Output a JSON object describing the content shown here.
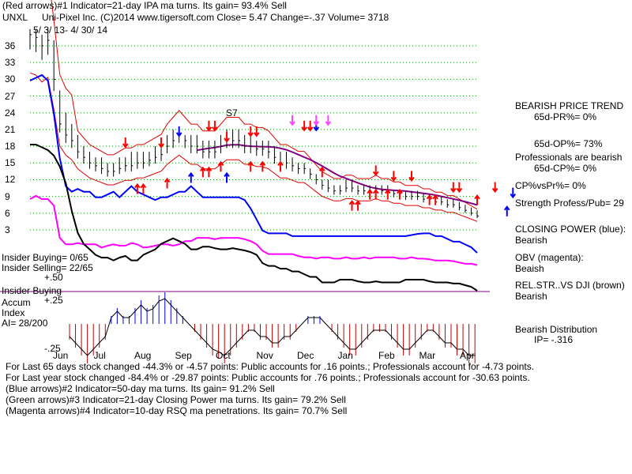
{
  "header": {
    "line1": "(Red arrows)#1 Indicator=21-day IPA ma turns.  Its gain= 93.4% Sell",
    "ticker": "UNXL",
    "line2": "Uni-Pixel Inc.  (C)2014 www.tigersoft.com     Close=  5.47  Change=-.37 Volume=  3718",
    "daterange": "5/ 3/ 13-  4/ 30/ 14"
  },
  "left_labels": {
    "insider_buying_count": "Insider Buying= 0/65",
    "insider_selling_count": "Insider Selling= 22/65",
    "plus50": "+.50",
    "insider_buying": "Insider Buying",
    "accum": "Accum",
    "plus25": "+.25",
    "index": "Index",
    "ai": "AI= 28/200",
    "minus25": "-.25"
  },
  "right_panel": {
    "trend_title": "BEARISH PRICE TREND",
    "pr": "65d-PR%= 0%",
    "op": "65d-OP%= 73%",
    "pros": "Professionals are bearish",
    "cp": "65d-CP%= 0%",
    "cpvspr": "CP%vsPr%=  0%",
    "strength": "Strength Profess/Pub= 29",
    "closing_power": "CLOSING POWER (blue):",
    "cp_val": "Bearish",
    "obv": "OBV (magenta):",
    "obv_val": "Beaish",
    "relstr": "REL.STR..VS DJI (brown)",
    "relstr_val": "Bearish",
    "distribution": "Bearish Distribution",
    "ip": "IP= -.316"
  },
  "footer": {
    "line1": "For Last 65 days stock changed -44.3% or -4.57 points:  Public accounts for  .16 points.;  Professionals account for -4.73 points.",
    "line2": "For Last year stock changed -84.4% or -29.87 points:  Public accounts for  .76 points.;  Professionals account for -30.63 points.",
    "line3": "(Blue arrows)#2 Indicator=50-day ma turns.  Its gain= 91.2% Sell",
    "line4": "(Green arrows)#3 Indicator=21-day Closing Power ma turns.  Its gain= 79.2% Sell",
    "line5": "(Magenta arrows)#4 Indicator=10-day RSQ ma penetrations.  Its gain= 70.7% Sell"
  },
  "annotations": {
    "s7": "S7"
  },
  "colors": {
    "grid": "#00a000",
    "price": "#000000",
    "band": "#e00000",
    "ma": "#800080",
    "closing_power": "#0000ff",
    "obv": "#ff00ff",
    "relstr": "#000000",
    "accum_pos": "#0000ff",
    "accum_neg": "#c00000",
    "baseline": "#800080"
  },
  "chart_data": {
    "type": "line",
    "ytick_labels": [
      "36",
      "33",
      "30",
      "27",
      "24",
      "21",
      "18",
      "15",
      "12",
      "9",
      "6",
      "3"
    ],
    "yticks": [
      36,
      33,
      30,
      27,
      24,
      21,
      18,
      15,
      12,
      9,
      6,
      3
    ],
    "month_labels": [
      "Jun",
      "Jul",
      "Aug",
      "Sep",
      "Oct",
      "Nov",
      "Dec",
      "Jan",
      "Feb",
      "Mar",
      "Apr"
    ],
    "price_close": [
      38,
      37.5,
      36,
      37,
      30,
      22,
      20,
      19,
      17,
      16,
      15,
      14.5,
      14,
      13.5,
      13.5,
      14,
      14.5,
      14.5,
      15,
      15,
      15.5,
      16,
      16.5,
      18,
      19,
      20,
      19,
      18,
      18,
      17,
      17,
      17,
      18,
      19,
      19,
      19,
      18,
      18,
      17.5,
      17.5,
      17,
      16,
      15,
      15,
      14.5,
      14,
      14,
      13,
      12,
      11,
      10.5,
      10,
      10,
      10.5,
      10.5,
      10,
      10,
      10,
      10.5,
      10,
      10,
      9.5,
      9.5,
      9,
      9,
      9,
      8.5,
      8.5,
      8,
      8,
      7.5,
      7.5,
      7,
      6.5,
      6,
      5.5
    ],
    "price_highs": [
      39,
      39,
      38,
      39,
      37,
      28,
      24,
      22,
      20,
      18,
      17,
      16,
      16,
      15,
      15,
      16,
      16,
      17,
      17,
      17,
      17,
      18,
      19,
      20,
      21,
      21,
      20,
      20,
      20,
      19,
      19,
      19,
      20,
      21,
      21,
      21,
      20,
      20,
      19,
      19,
      19,
      18,
      17,
      17,
      16,
      15,
      15,
      14,
      13,
      12,
      12,
      11,
      11,
      12,
      12,
      11,
      11,
      11,
      11,
      11,
      11,
      10,
      10,
      10,
      10,
      10,
      9.5,
      9.5,
      9,
      9,
      8.5,
      8.5,
      8,
      7.5,
      7,
      6.5
    ],
    "closing_power": [
      31,
      31.5,
      32,
      31,
      25,
      17,
      12,
      11,
      11.5,
      11,
      11,
      10,
      10,
      10.5,
      11,
      10,
      11,
      12,
      11,
      10.5,
      10,
      9.5,
      10,
      10,
      10.5,
      11,
      11,
      12,
      11,
      10,
      10,
      10,
      10,
      10,
      10,
      10,
      9.5,
      8,
      6,
      4,
      3.5,
      3.5,
      3.5,
      3.5,
      3,
      3,
      3,
      3,
      3,
      3,
      3,
      3,
      3,
      3,
      3,
      3,
      3,
      3,
      3,
      3,
      3,
      3,
      3,
      3,
      3.2,
      3.4,
      3.5,
      3.5,
      3,
      3,
      2.5,
      2,
      2,
      1.5,
      1,
      0
    ],
    "obv": [
      8,
      8.5,
      8,
      8,
      7,
      2,
      1,
      1,
      1.2,
      1,
      1,
      1,
      0.5,
      0.8,
      1,
      0.8,
      0.8,
      1.2,
      1,
      0.5,
      0.6,
      0.8,
      1,
      1,
      0.8,
      1,
      1.5,
      1.5,
      2,
      2,
      2,
      1.8,
      2,
      2,
      2,
      2,
      1.8,
      1.5,
      1,
      0,
      -0.5,
      -0.5,
      -0.5,
      -0.5,
      -0.5,
      -0.8,
      -1,
      -1,
      -1.2,
      -1,
      -1,
      -1.2,
      -1.2,
      -1,
      -1.2,
      -1.2,
      -1,
      -1.2,
      -1,
      -1,
      -1,
      -1,
      -1.2,
      -1.2,
      -1,
      -1.2,
      -1.2,
      -1.3,
      -1.5,
      -1.5,
      -1.5,
      -1.6,
      -1.8,
      -2,
      -2,
      -2.2
    ],
    "rel_strength": [
      18,
      18,
      17.5,
      17,
      16,
      14,
      11,
      6,
      2,
      0,
      -1,
      -2,
      -2.5,
      -2.5,
      -3,
      -2.5,
      -2.2,
      -3,
      -3,
      -2,
      -1.5,
      -1,
      0,
      0.5,
      1,
      0.5,
      0,
      -1,
      -1,
      -0.5,
      -0.5,
      -0.8,
      -1,
      -1,
      -0.8,
      -1,
      -1.2,
      -1.5,
      -2,
      -3.5,
      -4,
      -4,
      -4.5,
      -4.5,
      -5,
      -5,
      -5.5,
      -6,
      -6,
      -7,
      -7,
      -7,
      -6.5,
      -6.5,
      -6.5,
      -6.8,
      -7,
      -7,
      -6.8,
      -7,
      -7,
      -7,
      -7,
      -6.5,
      -6.5,
      -6.5,
      -6.5,
      -6.8,
      -7,
      -7,
      -7,
      -7.2,
      -7.2,
      -7.5,
      -7.8,
      -8.5
    ],
    "accum_index": [
      -0.1,
      -0.15,
      -0.2,
      -0.25,
      -0.2,
      -0.15,
      -0.1,
      0.05,
      0.1,
      0.05,
      0.05,
      0.1,
      0.15,
      0.1,
      0.12,
      0.18,
      0.2,
      0.15,
      0.1,
      0.05,
      0,
      -0.05,
      -0.1,
      -0.15,
      -0.2,
      -0.22,
      -0.25,
      -0.2,
      -0.15,
      -0.1,
      -0.05,
      -0.05,
      -0.1,
      -0.1,
      -0.15,
      -0.15,
      -0.1,
      -0.1,
      -0.05,
      0,
      0.05,
      0.05,
      0.05,
      0,
      -0.05,
      -0.1,
      -0.15,
      -0.2,
      -0.2,
      -0.15,
      -0.1,
      -0.05,
      -0.05,
      -0.05,
      -0.1,
      -0.15,
      -0.2,
      -0.2,
      -0.15,
      -0.1,
      -0.05,
      -0.05,
      -0.1,
      -0.15,
      -0.15,
      -0.2,
      -0.2,
      -0.25,
      -0.25,
      -0.25,
      -0.3,
      -0.3,
      -0.3,
      -0.32,
      -0.32,
      -0.3
    ],
    "red_down_arrows": [
      {
        "x": 16,
        "y": 19
      },
      {
        "x": 22,
        "y": 19
      },
      {
        "x": 30,
        "y": 22
      },
      {
        "x": 31,
        "y": 22
      },
      {
        "x": 33,
        "y": 20
      },
      {
        "x": 37,
        "y": 21
      },
      {
        "x": 38,
        "y": 21
      },
      {
        "x": 46,
        "y": 22
      },
      {
        "x": 47,
        "y": 22
      },
      {
        "x": 58,
        "y": 14
      },
      {
        "x": 61,
        "y": 13
      },
      {
        "x": 64,
        "y": 13
      },
      {
        "x": 71,
        "y": 11
      },
      {
        "x": 72,
        "y": 11
      },
      {
        "x": 78,
        "y": 11
      }
    ],
    "red_up_arrows": [
      {
        "x": 18,
        "y": 10
      },
      {
        "x": 19,
        "y": 10
      },
      {
        "x": 23,
        "y": 11
      },
      {
        "x": 29,
        "y": 13
      },
      {
        "x": 30,
        "y": 13
      },
      {
        "x": 32,
        "y": 14
      },
      {
        "x": 37,
        "y": 14
      },
      {
        "x": 39,
        "y": 14
      },
      {
        "x": 42,
        "y": 14
      },
      {
        "x": 49,
        "y": 13
      },
      {
        "x": 54,
        "y": 7
      },
      {
        "x": 55,
        "y": 7
      },
      {
        "x": 57,
        "y": 9
      },
      {
        "x": 58,
        "y": 9
      },
      {
        "x": 60,
        "y": 9
      },
      {
        "x": 62,
        "y": 9
      },
      {
        "x": 67,
        "y": 8
      },
      {
        "x": 68,
        "y": 8
      },
      {
        "x": 75,
        "y": 8
      }
    ],
    "blue_down_arrows": [
      {
        "x": 25,
        "y": 21
      },
      {
        "x": 48,
        "y": 22
      },
      {
        "x": 81,
        "y": 10
      }
    ],
    "blue_up_arrows": [
      {
        "x": 27,
        "y": 12
      },
      {
        "x": 33,
        "y": 12
      },
      {
        "x": 80,
        "y": 6
      }
    ],
    "magenta_down_arrows": [
      {
        "x": 44,
        "y": 23
      },
      {
        "x": 48,
        "y": 23
      },
      {
        "x": 50,
        "y": 23
      }
    ]
  }
}
